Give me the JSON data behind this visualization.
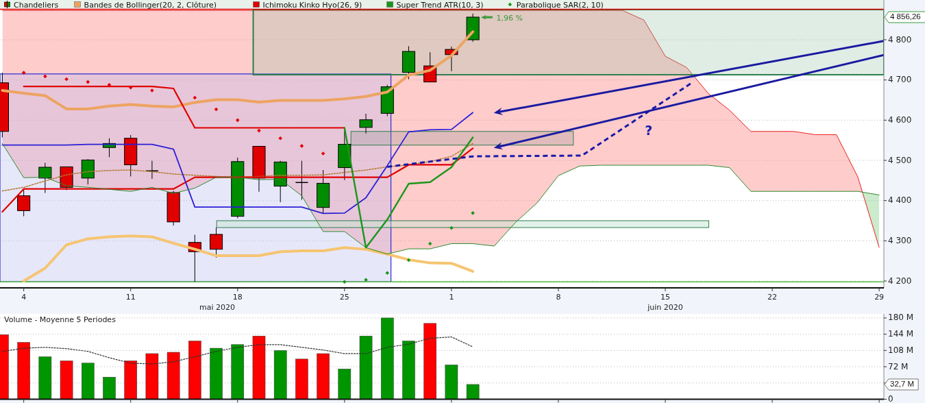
{
  "chart_data": [
    {
      "type": "candlestick",
      "categories": [
        null,
        "4",
        null,
        null,
        null,
        null,
        "11",
        null,
        null,
        null,
        null,
        "18",
        null,
        null,
        null,
        null,
        "25",
        null,
        null,
        null,
        null,
        "1",
        null,
        null,
        null,
        null,
        "8",
        null,
        null,
        null,
        null,
        "15",
        null,
        null,
        null,
        null,
        "22",
        null,
        null,
        null,
        null,
        "29"
      ],
      "ylim": [
        4183,
        4875
      ],
      "yticks": [
        {
          "value": 4200,
          "label": "4 200"
        },
        {
          "value": 4300,
          "label": "4 300"
        },
        {
          "value": 4400,
          "label": "4 400"
        },
        {
          "value": 4500,
          "label": "4 500"
        },
        {
          "value": 4600,
          "label": "4 600"
        },
        {
          "value": 4700,
          "label": "4 700"
        },
        {
          "value": 4800,
          "label": "4 800"
        }
      ],
      "grid": "y",
      "legend": "top",
      "series": [
        {
          "name": "Chandeliers",
          "colors": [
            "#e00000",
            "#e00000",
            "#008c00",
            "#e00000",
            "#008c00",
            "#008c00",
            "#e00000",
            "#000000",
            "#e00000",
            "#e00000",
            "#e00000",
            "#008c00",
            "#e00000",
            "#008c00",
            "#000000",
            "#008c00",
            "#008c00",
            "#008c00",
            "#008c00",
            "#008c00",
            "#e00000",
            "#e00000",
            "#008c00",
            null,
            null,
            null,
            null,
            null,
            null,
            null,
            null,
            null,
            null,
            null,
            null,
            null,
            null,
            null,
            null,
            null,
            null,
            null
          ],
          "ohlc": [
            [
              4693,
              4718,
              4557,
              4572
            ],
            [
              4412,
              4428,
              4361,
              4375
            ],
            [
              4456,
              4494,
              4419,
              4483
            ],
            [
              4484,
              4484,
              4426,
              4433
            ],
            [
              4456,
              4503,
              4440,
              4501
            ],
            [
              4532,
              4555,
              4508,
              4542
            ],
            [
              4555,
              4563,
              4460,
              4489
            ],
            [
              4474,
              4499,
              4454,
              4473
            ],
            [
              4420,
              4424,
              4338,
              4347
            ],
            [
              4296,
              4315,
              4198,
              4273
            ],
            [
              4316,
              4333,
              4258,
              4279
            ],
            [
              4361,
              4507,
              4356,
              4497
            ],
            [
              4535,
              4535,
              4422,
              4456
            ],
            [
              4436,
              4499,
              4396,
              4496
            ],
            [
              4445,
              4499,
              4402,
              4444
            ],
            [
              4383,
              4476,
              4368,
              4443
            ],
            [
              4482,
              4574,
              4451,
              4540
            ],
            [
              4582,
              4616,
              4567,
              4601
            ],
            [
              4617,
              4688,
              4610,
              4683
            ],
            [
              4719,
              4784,
              4702,
              4771
            ],
            [
              4735,
              4769,
              4695,
              4695
            ],
            [
              4776,
              4783,
              4722,
              4763
            ],
            [
              4800,
              4865,
              4795,
              4856.26
            ],
            null,
            null,
            null,
            null,
            null,
            null,
            null,
            null,
            null,
            null,
            null,
            null,
            null,
            null,
            null,
            null,
            null,
            null,
            null
          ]
        },
        {
          "type": "line",
          "name": "Bandes de Bollinger(20, 2, Clôture)",
          "color": "#eda462",
          "values": [
            4674,
            4667,
            4661,
            4628,
            4628,
            4635,
            4639,
            4635,
            4633,
            4644,
            4651,
            4651,
            4645,
            4649,
            4649,
            4649,
            4653,
            4659,
            4670,
            4712,
            4724,
            4761,
            4820,
            null,
            null,
            null,
            null,
            null,
            null,
            null,
            null,
            null,
            null,
            null,
            null,
            null,
            null,
            null,
            null,
            null,
            null,
            null
          ]
        },
        {
          "type": "line",
          "color": "#f5c572",
          "values": [
            null,
            4200,
            4232,
            4290,
            4305,
            4310,
            4312,
            4310,
            4294,
            4279,
            4263,
            4263,
            4263,
            4273,
            4275,
            4275,
            4283,
            4279,
            4267,
            4253,
            4245,
            4244,
            4224,
            null,
            null,
            null,
            null,
            null,
            null,
            null,
            null,
            null,
            null,
            null,
            null,
            null,
            null,
            null,
            null,
            null,
            null,
            null
          ]
        },
        {
          "type": "line",
          "color": "#b07a30",
          "line_style": "dotted",
          "values": [
            4424,
            4433,
            4449,
            4464,
            4472,
            4475,
            4476,
            4472,
            4466,
            4463,
            4460,
            4458,
            4460,
            4463,
            4463,
            4464,
            4470,
            4476,
            4484,
            4489,
            4497,
            4510,
            4542,
            null,
            null,
            null,
            null,
            null,
            null,
            null,
            null,
            null,
            null,
            null,
            null,
            null,
            null,
            null,
            null,
            null,
            null,
            null
          ]
        },
        {
          "type": "line",
          "name": "Ichimoku Kinko Hyo(26, 9)",
          "color": "#e00000",
          "values": [
            4372,
            4429,
            4429,
            4429,
            4429,
            4429,
            4429,
            4429,
            4429,
            4458,
            4458,
            4458,
            4458,
            4458,
            4458,
            4458,
            4458,
            4458,
            4458,
            4489,
            4489,
            4489,
            4530,
            null,
            null,
            null,
            null,
            null,
            null,
            null,
            null,
            null,
            null,
            null,
            null,
            null,
            null,
            null,
            null,
            null,
            null,
            null
          ]
        },
        {
          "type": "line",
          "color": "#2a1fd6",
          "values": [
            4538,
            4538,
            4538,
            4538,
            4540,
            4540,
            4540,
            4540,
            4528,
            4384,
            4384,
            4384,
            4384,
            4384,
            4384,
            4368,
            4369,
            4407,
            4487,
            4571,
            4576,
            4577,
            4619,
            null,
            null,
            null,
            null,
            null,
            null,
            null,
            null,
            null,
            null,
            null,
            null,
            null,
            null,
            null,
            null,
            null,
            null,
            null
          ]
        },
        {
          "type": "line",
          "color": "#2e8b2e",
          "values": [
            4542,
            4457,
            4458,
            4437,
            4433,
            4428,
            4423,
            4433,
            4418,
            4431,
            4458,
            4458,
            4452,
            4453,
            4412,
            4323,
            4323,
            4283,
            4267,
            4280,
            4280,
            4293,
            4293,
            4287,
            4346,
            4394,
            4462,
            4486,
            4488,
            4488,
            4488,
            4488,
            4488,
            4488,
            4482,
            4423,
            4423,
            4423,
            4423,
            4423,
            4423,
            4414
          ]
        },
        {
          "type": "area",
          "color": "#e82020",
          "values": [
            4873,
            4873,
            4873,
            4873,
            4873,
            4873,
            4873,
            4873,
            4873,
            4873,
            4873,
            4873,
            4873,
            4873,
            4873,
            4873,
            4873,
            4873,
            4873,
            4873,
            4873,
            4873,
            4873,
            4873,
            4873,
            4873,
            4873,
            4873,
            4873,
            4873,
            4849,
            4759,
            4731,
            4667,
            4625,
            4572,
            4572,
            4572,
            4564,
            4564,
            4459,
            4283
          ]
        },
        {
          "type": "line",
          "color": "#e00000",
          "values": [
            null,
            4684,
            4684,
            4684,
            4684,
            4684,
            4684,
            4684,
            4679,
            4581,
            4581,
            4581,
            4581,
            4581,
            4581,
            4581,
            4581,
            null,
            null,
            null,
            null,
            null,
            null,
            null,
            null,
            null,
            null,
            null,
            null,
            null,
            null,
            null,
            null,
            null,
            null,
            null,
            null,
            null,
            null,
            null,
            null,
            null
          ]
        },
        {
          "type": "line",
          "name": "Super Trend ATR(10, 3)",
          "color": "#1a961a",
          "values": [
            null,
            null,
            null,
            null,
            null,
            null,
            null,
            null,
            null,
            null,
            null,
            null,
            null,
            null,
            null,
            null,
            4581,
            4283,
            4353,
            4442,
            4446,
            4483,
            4557,
            null,
            null,
            null,
            null,
            null,
            null,
            null,
            null,
            null,
            null,
            null,
            null,
            null,
            null,
            null,
            null,
            null,
            null,
            null
          ]
        },
        {
          "type": "scatter",
          "color": "#e00000",
          "marker": "diamond",
          "values": [
            null,
            4718,
            4709,
            4702,
            4695,
            4688,
            4681,
            4674,
            null,
            4656,
            4627,
            4600,
            4574,
            4555,
            4536,
            4517,
            null,
            null,
            null,
            null,
            null,
            null,
            null,
            null,
            null,
            null,
            null,
            null,
            null,
            null,
            null,
            null,
            null,
            null,
            null,
            null,
            null,
            null,
            null,
            null,
            null,
            null
          ]
        },
        {
          "type": "scatter",
          "name": "Parabolique SAR(2, 10)",
          "color": "#1a961a",
          "marker": "diamond",
          "values": [
            null,
            null,
            null,
            null,
            null,
            null,
            null,
            null,
            null,
            null,
            null,
            null,
            null,
            null,
            null,
            null,
            4198,
            4203,
            4220,
            4252,
            4293,
            4332,
            4369,
            null,
            null,
            null,
            null,
            null,
            null,
            null,
            null,
            null,
            null,
            null,
            null,
            null,
            null,
            null,
            null,
            null,
            null,
            null
          ]
        }
      ],
      "ref_lines": [
        {
          "axis": "y",
          "value": 4198,
          "color": "#55bb44"
        }
      ],
      "annotations": [
        "1,96 %",
        "?",
        "4 856,26",
        "mai 2020",
        "juin 2020"
      ]
    },
    {
      "type": "bar",
      "title": "Volume  - Moyenne 5 Periodes",
      "categories": [
        null,
        "4",
        null,
        null,
        null,
        null,
        "11",
        null,
        null,
        null,
        null,
        "18",
        null,
        null,
        null,
        null,
        "25",
        null,
        null,
        null,
        null,
        "1",
        null,
        null,
        null,
        null,
        "8",
        null,
        null,
        null,
        null,
        "15",
        null,
        null,
        null,
        null,
        "22",
        null,
        null,
        null,
        null,
        "29"
      ],
      "ylim": [
        0,
        189
      ],
      "yticks": [
        {
          "value": 0,
          "label": "0"
        },
        {
          "value": 36,
          "label": null
        },
        {
          "value": 72,
          "label": "72 M"
        },
        {
          "value": 108,
          "label": "108 M"
        },
        {
          "value": 144,
          "label": "144 M"
        },
        {
          "value": 180,
          "label": "180 M"
        }
      ],
      "tick_labels": "y",
      "grid": "y",
      "series": [
        {
          "colors": [
            "#ff0000",
            "#ff0000",
            "#009600",
            "#ff0000",
            "#009600",
            "#009600",
            "#ff0000",
            "#ff0000",
            "#ff0000",
            "#ff0000",
            "#009600",
            "#009600",
            "#ff0000",
            "#009600",
            "#ff0000",
            "#ff0000",
            "#009600",
            "#009600",
            "#009600",
            "#009600",
            "#ff0000",
            "#009600",
            "#009600",
            null,
            null,
            null,
            null,
            null,
            null,
            null,
            null,
            null,
            null,
            null,
            null,
            null,
            null,
            null,
            null,
            null,
            null,
            null
          ],
          "values": [
            143,
            126,
            94,
            85,
            80,
            49,
            85,
            101,
            104,
            129,
            113,
            121,
            140,
            108,
            89,
            101,
            67,
            140,
            180,
            129,
            168,
            76,
            32.7,
            null,
            null,
            null,
            null,
            null,
            null,
            null,
            null,
            null,
            null,
            null,
            null,
            null,
            null,
            null,
            null,
            null,
            null,
            null
          ]
        },
        {
          "type": "line",
          "color": "#333333",
          "line_style": "dotted",
          "values": [
            106,
            113,
            115,
            112,
            106,
            92,
            80,
            78,
            83,
            94,
            106,
            115,
            121,
            121,
            115,
            109,
            101,
            101,
            115,
            122,
            135,
            138,
            116,
            null,
            null,
            null,
            null,
            null,
            null,
            null,
            null,
            null,
            null,
            null,
            null,
            null,
            null,
            null,
            null,
            null,
            null,
            null
          ]
        }
      ],
      "annotations": [
        "32,7 M"
      ]
    }
  ]
}
